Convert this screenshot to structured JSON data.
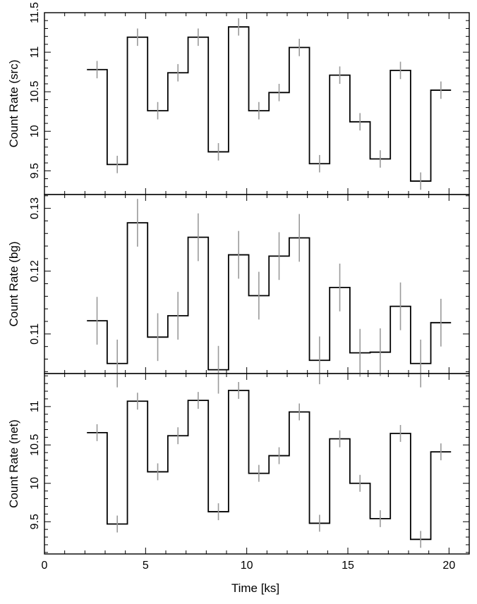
{
  "chart_data": {
    "type": "line",
    "style": "step histogram with error bars",
    "xlabel": "Time [ks]",
    "xlim": [
      0,
      21
    ],
    "x_ticks": [
      "0",
      "5",
      "10",
      "15",
      "20"
    ],
    "bin_edges": [
      2.1,
      3.1,
      4.1,
      5.1,
      6.1,
      7.1,
      8.1,
      9.1,
      10.1,
      11.1,
      12.1,
      13.1,
      14.1,
      15.1,
      16.1,
      17.1,
      18.1,
      19.1,
      20.1
    ],
    "panels": [
      {
        "ylabel": "Count Rate (src)",
        "ylim": [
          9.2,
          11.5
        ],
        "y_ticks": [
          "9.5",
          "10",
          "10.5",
          "11",
          "11.5"
        ],
        "values": [
          10.78,
          9.58,
          11.19,
          10.26,
          10.74,
          11.19,
          9.74,
          11.32,
          10.26,
          10.49,
          11.06,
          9.59,
          10.71,
          10.12,
          9.65,
          10.77,
          9.37,
          10.52
        ],
        "errors": [
          0.11,
          0.11,
          0.11,
          0.11,
          0.11,
          0.11,
          0.11,
          0.11,
          0.11,
          0.11,
          0.11,
          0.11,
          0.11,
          0.11,
          0.11,
          0.11,
          0.11,
          0.11
        ]
      },
      {
        "ylabel": "Count Rate (bg)",
        "ylim": [
          0.1037,
          0.1322
        ],
        "y_ticks": [
          "0.11",
          "0.12",
          "0.13"
        ],
        "values": [
          0.1121,
          0.1053,
          0.1277,
          0.1095,
          0.1129,
          0.1254,
          0.1043,
          0.1226,
          0.1161,
          0.1224,
          0.1253,
          0.1058,
          0.1174,
          0.107,
          0.1071,
          0.1144,
          0.1053,
          0.1118
        ],
        "errors": [
          0.0038,
          0.0038,
          0.0038,
          0.0038,
          0.0038,
          0.0038,
          0.0038,
          0.0038,
          0.0038,
          0.0038,
          0.0038,
          0.0038,
          0.0038,
          0.0038,
          0.0038,
          0.0038,
          0.0038,
          0.0038
        ]
      },
      {
        "ylabel": "Count Rate (net)",
        "ylim": [
          9.08,
          11.43
        ],
        "y_ticks": [
          "9.5",
          "10",
          "10.5",
          "11"
        ],
        "values": [
          10.66,
          9.47,
          11.07,
          10.15,
          10.62,
          11.08,
          9.63,
          11.21,
          10.13,
          10.36,
          10.93,
          9.48,
          10.58,
          10.0,
          9.54,
          10.65,
          9.27,
          10.41
        ],
        "errors": [
          0.11,
          0.11,
          0.11,
          0.11,
          0.11,
          0.11,
          0.11,
          0.11,
          0.11,
          0.11,
          0.11,
          0.11,
          0.11,
          0.11,
          0.11,
          0.11,
          0.11,
          0.11
        ]
      }
    ],
    "grid": false,
    "legend": "none",
    "colors": {
      "step": "#000000",
      "error_bar": "#9a9a9a",
      "frame": "#000000"
    }
  }
}
